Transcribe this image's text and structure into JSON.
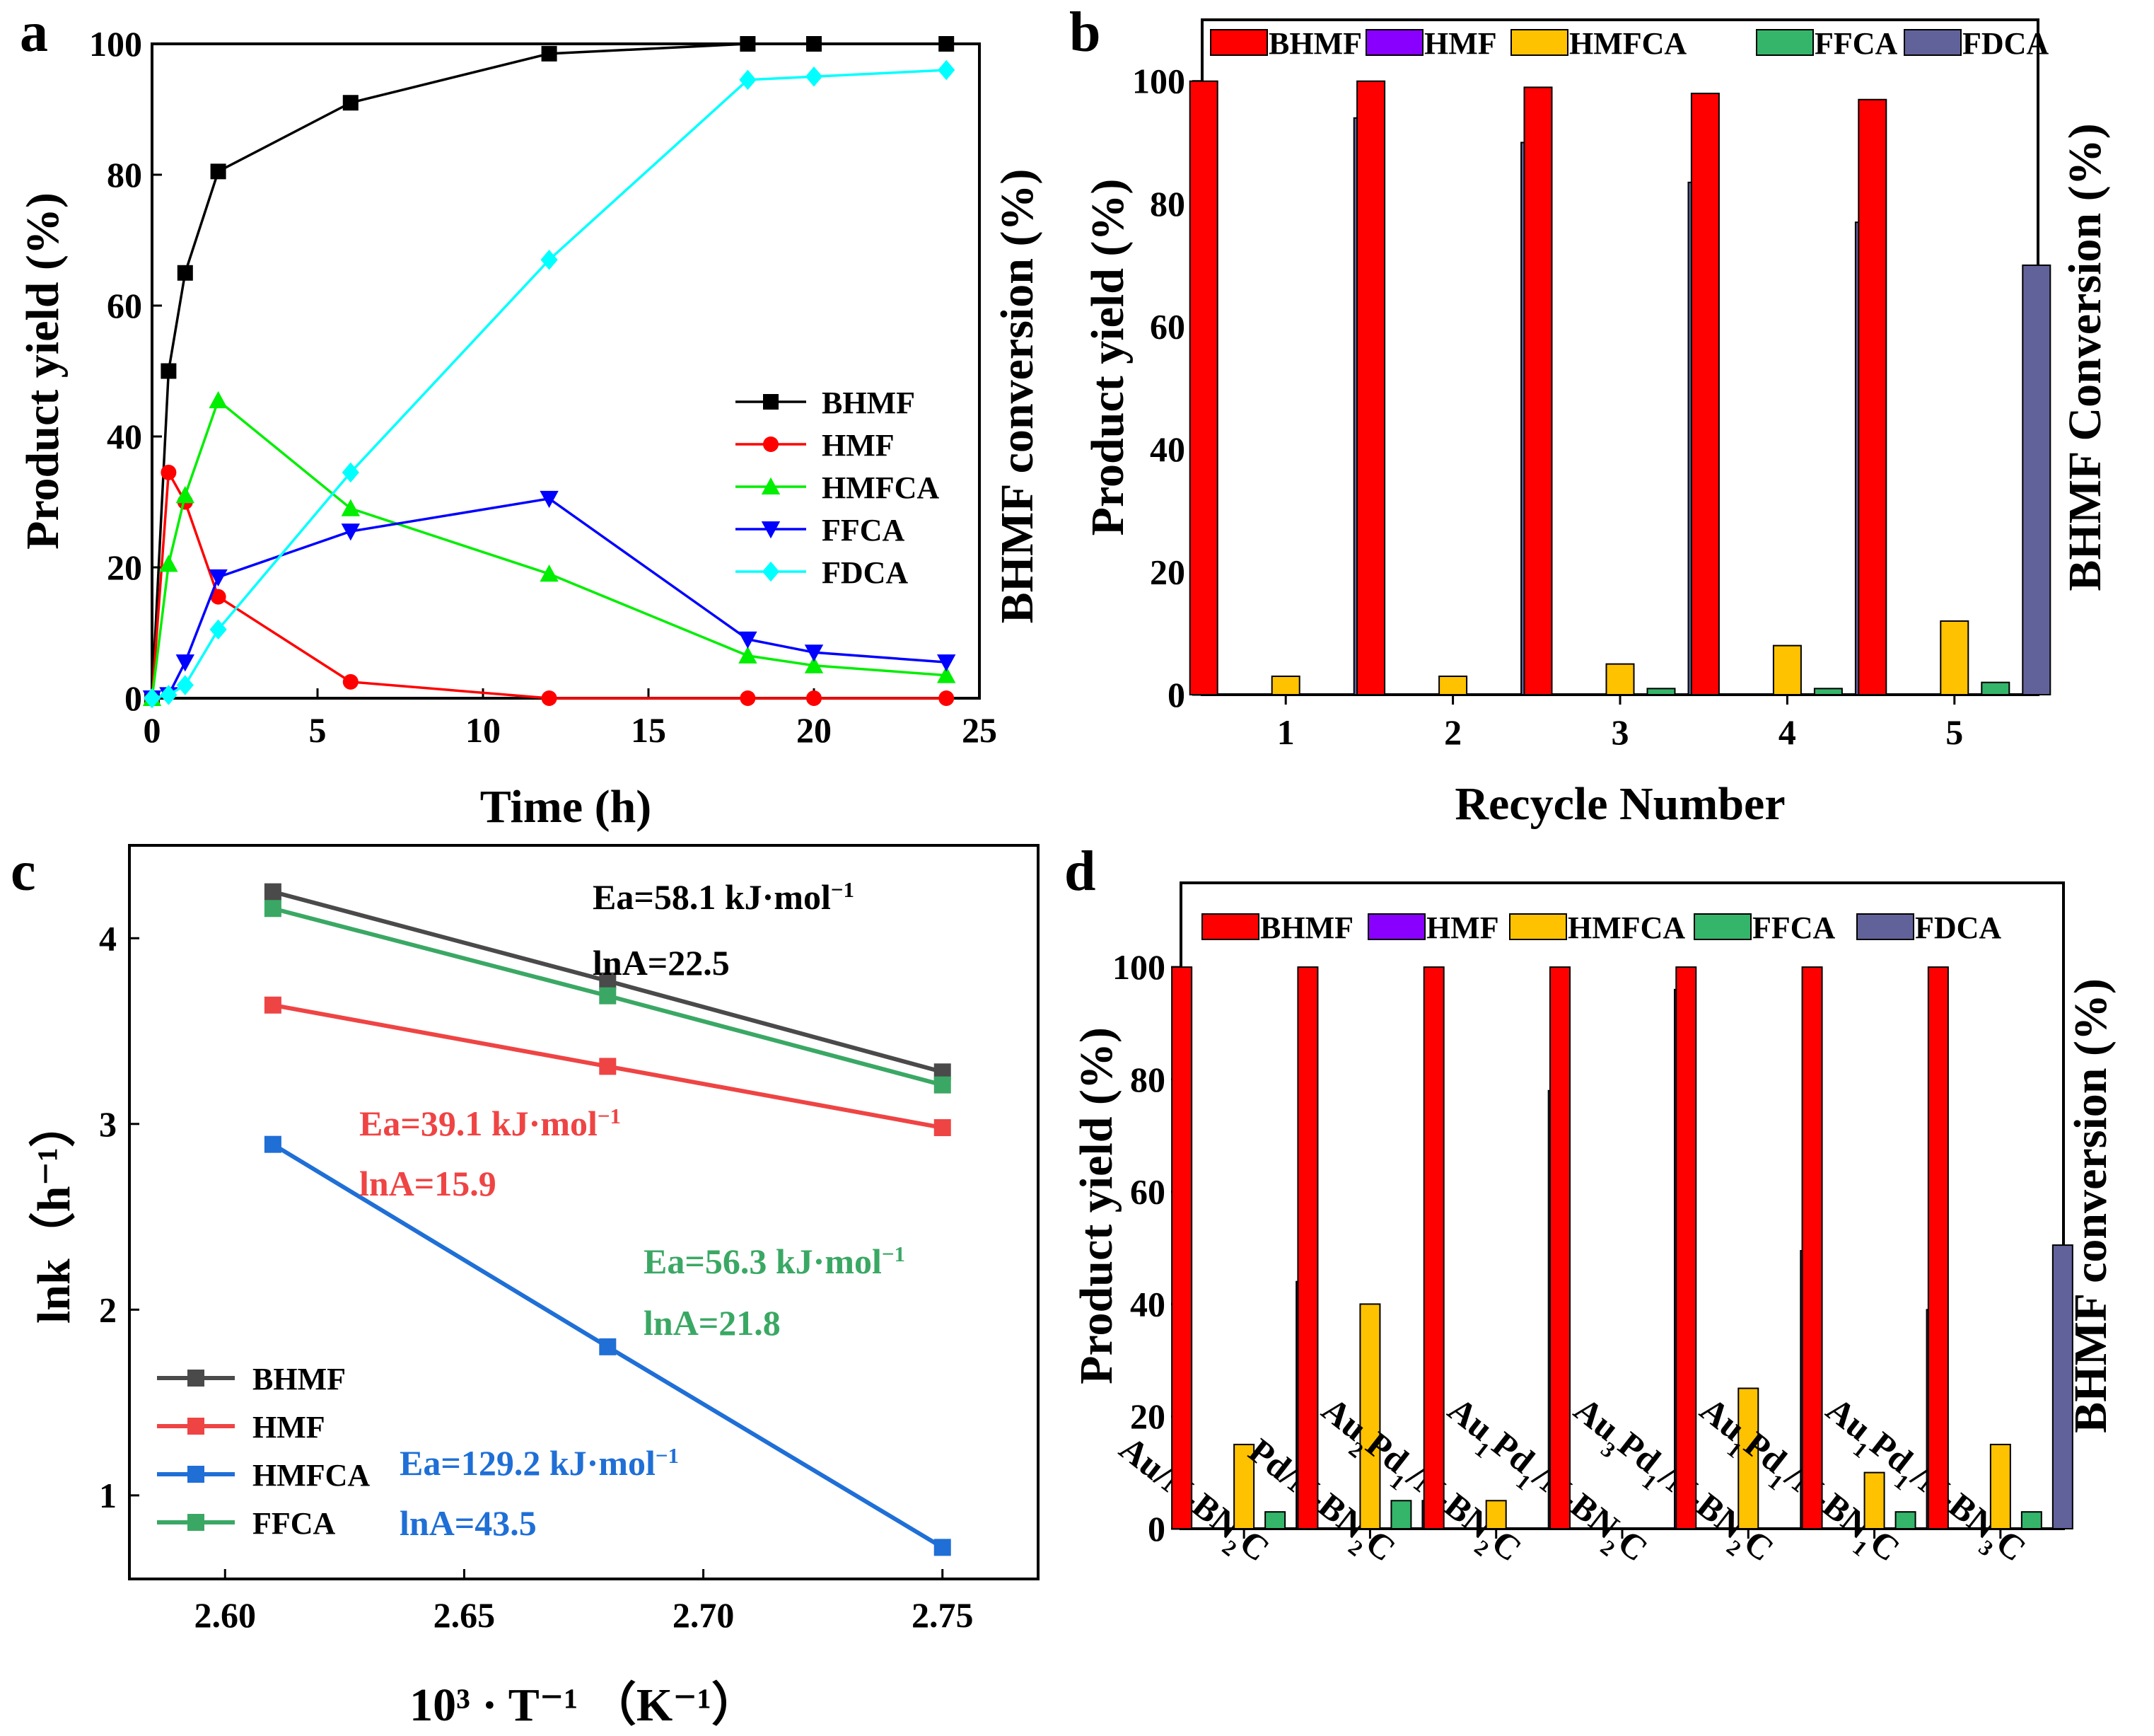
{
  "figure": {
    "panels": [
      "a",
      "b",
      "c",
      "d"
    ]
  },
  "colors": {
    "BHMF_line": "#000000",
    "HMF_line": "#ff0000",
    "HMFCA_line": "#00ee00",
    "FFCA_line": "#0000ff",
    "FDCA_line": "#00ffff",
    "bar_BHMF": "#ff0000",
    "bar_HMF": "#8a00ff",
    "bar_HMFCA": "#ffc200",
    "bar_FFCA": "#34b56a",
    "bar_FDCA": "#62629b",
    "c_BHMF": "#4a4a4a",
    "c_HMF": "#ef4444",
    "c_HMFCA": "#1f6fd6",
    "c_FFCA": "#3aa864"
  },
  "chart_data": [
    {
      "panel": "a",
      "type": "line",
      "xlabel": "Time (h)",
      "ylabel": "Product yield (%)",
      "xlim": [
        0,
        25
      ],
      "ylim": [
        0,
        100
      ],
      "xticks": [
        0,
        5,
        10,
        15,
        20,
        25
      ],
      "yticks": [
        0,
        20,
        40,
        60,
        80,
        100
      ],
      "legend_position": "right-center",
      "series": [
        {
          "name": "BHMF",
          "marker": "square",
          "color": "#000000",
          "x": [
            0,
            0.5,
            1,
            2,
            6,
            12,
            18,
            20,
            24
          ],
          "y": [
            0,
            50,
            65,
            80.5,
            91,
            98.5,
            100,
            100,
            100
          ]
        },
        {
          "name": "HMF",
          "marker": "circle",
          "color": "#ff0000",
          "x": [
            0,
            0.5,
            1,
            2,
            6,
            12,
            18,
            20,
            24
          ],
          "y": [
            0,
            34.5,
            30,
            15.5,
            2.5,
            0,
            0,
            0,
            0
          ]
        },
        {
          "name": "HMFCA",
          "marker": "triangle-up",
          "color": "#00ee00",
          "x": [
            0,
            0.5,
            1,
            2,
            6,
            12,
            18,
            20,
            24
          ],
          "y": [
            0,
            20.5,
            31,
            45.5,
            29,
            19,
            6.5,
            5,
            3.5
          ]
        },
        {
          "name": "FFCA",
          "marker": "triangle-down",
          "color": "#0000ff",
          "x": [
            0,
            0.5,
            1,
            2,
            6,
            12,
            18,
            20,
            24
          ],
          "y": [
            0,
            0.5,
            5.5,
            18.5,
            25.5,
            30.5,
            9,
            7,
            5.5
          ]
        },
        {
          "name": "FDCA",
          "marker": "diamond",
          "color": "#00ffff",
          "x": [
            0,
            0.5,
            1,
            2,
            6,
            12,
            18,
            20,
            24
          ],
          "y": [
            0,
            0.5,
            2,
            10.5,
            34.5,
            67,
            94.5,
            95,
            96
          ]
        }
      ]
    },
    {
      "panel": "b",
      "type": "bar",
      "xlabel": "Recycle Number",
      "ylabel": "Product yield (%)",
      "ylabel_right": "BHMF Conversion (%)",
      "ylabel_left_outer": "BHMF conversion (%)",
      "ylim": [
        0,
        110
      ],
      "yticks": [
        0,
        20,
        40,
        60,
        80,
        100
      ],
      "categories": [
        "1",
        "2",
        "3",
        "4",
        "5"
      ],
      "legend_position": "top",
      "series": [
        {
          "name": "BHMF",
          "values": [
            100,
            100,
            99,
            98,
            97
          ]
        },
        {
          "name": "HMF",
          "values": [
            0,
            0,
            0,
            0,
            0
          ]
        },
        {
          "name": "HMFCA",
          "values": [
            3,
            3,
            5,
            8,
            12
          ]
        },
        {
          "name": "FFCA",
          "values": [
            0,
            0,
            1,
            1,
            2
          ]
        },
        {
          "name": "FDCA",
          "values": [
            94,
            90,
            83.5,
            77,
            70
          ]
        }
      ]
    },
    {
      "panel": "c",
      "type": "line",
      "xlabel": "10³ · T⁻¹ （K⁻¹）",
      "ylabel": "lnk（h⁻¹）",
      "xlim": [
        2.58,
        2.77
      ],
      "ylim": [
        0.55,
        4.5
      ],
      "xticks": [
        2.6,
        2.65,
        2.7,
        2.75
      ],
      "xtick_labels": [
        "2.60",
        "2.65",
        "2.70",
        "2.75"
      ],
      "yticks": [
        1,
        2,
        3,
        4
      ],
      "legend_position": "bottom-left",
      "series": [
        {
          "name": "BHMF",
          "color": "#4a4a4a",
          "x": [
            2.61,
            2.68,
            2.75
          ],
          "y": [
            4.25,
            3.77,
            3.28
          ]
        },
        {
          "name": "HMF",
          "color": "#ef4444",
          "x": [
            2.61,
            2.68,
            2.75
          ],
          "y": [
            3.64,
            3.31,
            2.98
          ]
        },
        {
          "name": "HMFCA",
          "color": "#1f6fd6",
          "x": [
            2.61,
            2.68,
            2.75
          ],
          "y": [
            2.89,
            1.8,
            0.72
          ]
        },
        {
          "name": "FFCA",
          "color": "#3aa864",
          "x": [
            2.61,
            2.68,
            2.75
          ],
          "y": [
            4.16,
            3.69,
            3.21
          ]
        }
      ],
      "annotations": [
        {
          "series": "BHMF",
          "ea": "Ea=58.1 kJ·mol",
          "ea_sup": "−1",
          "lna": "lnA=22.5"
        },
        {
          "series": "HMF",
          "ea": "Ea=39.1 kJ·mol",
          "ea_sup": "−1",
          "lna": "lnA=15.9"
        },
        {
          "series": "FFCA",
          "ea": "Ea=56.3 kJ·mol",
          "ea_sup": "−1",
          "lna": "lnA=21.8"
        },
        {
          "series": "HMFCA",
          "ea": "Ea=129.2 kJ·mol",
          "ea_sup": "−1",
          "lna": "lnA=43.5"
        }
      ]
    },
    {
      "panel": "d",
      "type": "bar",
      "xlabel": "",
      "ylabel": "Product yield (%)",
      "ylabel_right": "BHMF conversion (%)",
      "ylim": [
        0,
        115
      ],
      "yticks": [
        0,
        20,
        40,
        60,
        80,
        100
      ],
      "categories": [
        {
          "parts": [
            [
              "Au/N-BN",
              ""
            ],
            [
              "2",
              "sub"
            ],
            [
              "C",
              ""
            ]
          ]
        },
        {
          "parts": [
            [
              "Pd/N-BN",
              ""
            ],
            [
              "2",
              "sub"
            ],
            [
              "C",
              ""
            ]
          ]
        },
        {
          "parts": [
            [
              "Au",
              ""
            ],
            [
              "2",
              "sub"
            ],
            [
              "Pd",
              ""
            ],
            [
              "1",
              "sub"
            ],
            [
              "/N-BN",
              ""
            ],
            [
              "2",
              "sub"
            ],
            [
              "C",
              ""
            ]
          ]
        },
        {
          "parts": [
            [
              "Au",
              ""
            ],
            [
              "1",
              "sub"
            ],
            [
              "Pd",
              ""
            ],
            [
              "1",
              "sub"
            ],
            [
              "/N-BN",
              ""
            ],
            [
              "2",
              "sub"
            ],
            [
              "C",
              ""
            ]
          ]
        },
        {
          "parts": [
            [
              "Au",
              ""
            ],
            [
              "3",
              "sub"
            ],
            [
              "Pd",
              ""
            ],
            [
              "1",
              "sub"
            ],
            [
              "/N-BN",
              ""
            ],
            [
              "2",
              "sub"
            ],
            [
              "C",
              ""
            ]
          ]
        },
        {
          "parts": [
            [
              "Au",
              ""
            ],
            [
              "1",
              "sub"
            ],
            [
              "Pd",
              ""
            ],
            [
              "1",
              "sub"
            ],
            [
              "/N-BN",
              ""
            ],
            [
              "1",
              "sub"
            ],
            [
              "C",
              ""
            ]
          ]
        },
        {
          "parts": [
            [
              "Au",
              ""
            ],
            [
              "1",
              "sub"
            ],
            [
              "Pd",
              ""
            ],
            [
              "1",
              "sub"
            ],
            [
              "/N-BN",
              ""
            ],
            [
              "3",
              "sub"
            ],
            [
              "C",
              ""
            ]
          ]
        }
      ],
      "legend_position": "top",
      "series": [
        {
          "name": "BHMF",
          "values": [
            100,
            100,
            100,
            100,
            100,
            100,
            100
          ]
        },
        {
          "name": "HMF",
          "values": [
            0,
            0,
            0,
            0,
            0,
            0,
            0
          ]
        },
        {
          "name": "HMFCA",
          "values": [
            15,
            40,
            5,
            0,
            25,
            10,
            15
          ]
        },
        {
          "name": "FFCA",
          "values": [
            3,
            5,
            0,
            0,
            0,
            3,
            3
          ]
        },
        {
          "name": "FDCA",
          "values": [
            44,
            5,
            78,
            96,
            49.5,
            39,
            50.5
          ]
        }
      ]
    }
  ]
}
